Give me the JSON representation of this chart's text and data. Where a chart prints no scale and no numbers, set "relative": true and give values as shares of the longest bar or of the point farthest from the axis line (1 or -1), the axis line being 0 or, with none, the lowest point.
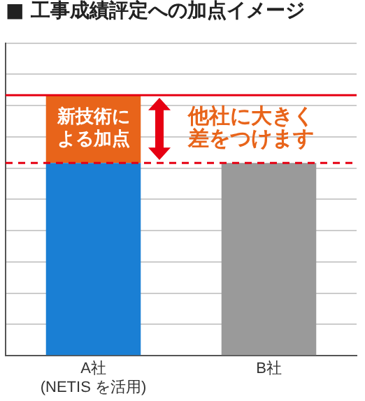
{
  "chart_data": {
    "type": "bar",
    "title": "■ 工事成績評定への加点イメージ",
    "relative": true,
    "stacked": true,
    "grid": "y",
    "legend": false,
    "tick_labels": "x",
    "categories": [
      "A社\n(NETIS を活用)",
      "B社"
    ],
    "series": [
      {
        "colors": [
          "#1a7fd4",
          "#9a9a9a"
        ],
        "values": [
          0.74,
          0.74
        ]
      },
      {
        "color": "#e8641a",
        "values": [
          0.26,
          null
        ]
      }
    ],
    "ref_lines": [
      {
        "axis": "y",
        "value": 1,
        "color": "#e60012",
        "line_style": "solid"
      },
      {
        "axis": "y",
        "value": 0.74,
        "color": "#e60012",
        "line_style": "dashed"
      }
    ],
    "annotations": [
      "新技術による加点",
      "他社に大きく差をつけます"
    ]
  }
}
